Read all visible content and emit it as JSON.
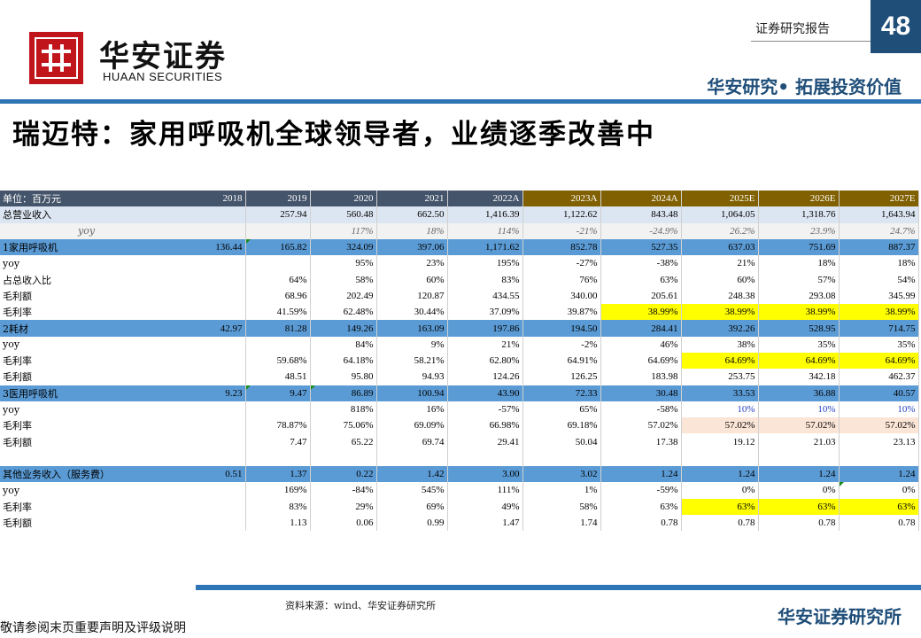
{
  "brand": {
    "name_cn": "华安证券",
    "name_en": "HUAAN SECURITIES"
  },
  "header": {
    "report_type": "证券研究报告",
    "page_number": "48",
    "slogan": "华安研究• 拓展投资价值"
  },
  "title": "瑞迈特：家用呼吸机全球领导者，业绩逐季改善中",
  "table": {
    "unit_label": "单位：百万元",
    "years": [
      "2018",
      "2019",
      "2020",
      "2021",
      "2022A",
      "2023A",
      "2024A",
      "2025E",
      "2026E",
      "2027E"
    ],
    "rows": [
      {
        "label": "总营业收入",
        "values": [
          "",
          "257.94",
          "560.48",
          "662.50",
          "1,416.39",
          "1,122.62",
          "843.48",
          "1,064.05",
          "1,318.76",
          "1,643.94"
        ]
      },
      {
        "label": "yoy",
        "values": [
          "",
          "",
          "117%",
          "18%",
          "114%",
          "-21%",
          "-24.9%",
          "26.2%",
          "23.9%",
          "24.7%"
        ]
      },
      {
        "label": "1家用呼吸机",
        "values": [
          "136.44",
          "165.82",
          "324.09",
          "397.06",
          "1,171.62",
          "852.78",
          "527.35",
          "637.03",
          "751.69",
          "887.37"
        ]
      },
      {
        "label": "yoy",
        "values": [
          "",
          "",
          "95%",
          "23%",
          "195%",
          "-27%",
          "-38%",
          "21%",
          "18%",
          "18%"
        ]
      },
      {
        "label": "占总收入比",
        "values": [
          "",
          "64%",
          "58%",
          "60%",
          "83%",
          "76%",
          "63%",
          "60%",
          "57%",
          "54%"
        ]
      },
      {
        "label": "毛利额",
        "values": [
          "",
          "68.96",
          "202.49",
          "120.87",
          "434.55",
          "340.00",
          "205.61",
          "248.38",
          "293.08",
          "345.99"
        ]
      },
      {
        "label": "毛利率",
        "values": [
          "",
          "41.59%",
          "62.48%",
          "30.44%",
          "37.09%",
          "39.87%",
          "38.99%",
          "38.99%",
          "38.99%",
          "38.99%"
        ]
      },
      {
        "label": "2耗材",
        "values": [
          "42.97",
          "81.28",
          "149.26",
          "163.09",
          "197.86",
          "194.50",
          "284.41",
          "392.26",
          "528.95",
          "714.75"
        ]
      },
      {
        "label": "yoy",
        "values": [
          "",
          "",
          "84%",
          "9%",
          "21%",
          "-2%",
          "46%",
          "38%",
          "35%",
          "35%"
        ]
      },
      {
        "label": "毛利率",
        "values": [
          "",
          "59.68%",
          "64.18%",
          "58.21%",
          "62.80%",
          "64.91%",
          "64.69%",
          "64.69%",
          "64.69%",
          "64.69%"
        ]
      },
      {
        "label": "毛利额",
        "values": [
          "",
          "48.51",
          "95.80",
          "94.93",
          "124.26",
          "126.25",
          "183.98",
          "253.75",
          "342.18",
          "462.37"
        ]
      },
      {
        "label": "3医用呼吸机",
        "values": [
          "9.23",
          "9.47",
          "86.89",
          "100.94",
          "43.90",
          "72.33",
          "30.48",
          "33.53",
          "36.88",
          "40.57"
        ]
      },
      {
        "label": "yoy",
        "values": [
          "",
          "",
          "818%",
          "16%",
          "-57%",
          "65%",
          "-58%",
          "10%",
          "10%",
          "10%"
        ]
      },
      {
        "label": "毛利率",
        "values": [
          "",
          "78.87%",
          "75.06%",
          "69.09%",
          "66.98%",
          "69.18%",
          "57.02%",
          "57.02%",
          "57.02%",
          "57.02%"
        ]
      },
      {
        "label": "毛利额",
        "values": [
          "",
          "7.47",
          "65.22",
          "69.74",
          "29.41",
          "50.04",
          "17.38",
          "19.12",
          "21.03",
          "23.13"
        ]
      },
      {
        "label": "",
        "values": [
          "",
          "",
          "",
          "",
          "",
          "",
          "",
          "",
          "",
          ""
        ]
      },
      {
        "label": "其他业务收入（服务费）",
        "values": [
          "0.51",
          "1.37",
          "0.22",
          "1.42",
          "3.00",
          "3.02",
          "1.24",
          "1.24",
          "1.24",
          "1.24"
        ]
      },
      {
        "label": "yoy",
        "values": [
          "",
          "169%",
          "-84%",
          "545%",
          "111%",
          "1%",
          "-59%",
          "0%",
          "0%",
          "0%"
        ]
      },
      {
        "label": "毛利率",
        "values": [
          "",
          "83%",
          "29%",
          "69%",
          "49%",
          "58%",
          "63%",
          "63%",
          "63%",
          "63%"
        ]
      },
      {
        "label": "毛利额",
        "values": [
          "",
          "1.13",
          "0.06",
          "0.99",
          "1.47",
          "1.74",
          "0.78",
          "0.78",
          "0.78",
          "0.78"
        ]
      }
    ]
  },
  "colors": {
    "brand_red": "#c0151b",
    "brand_blue": "#1f4e79",
    "highlight_yellow": "#ffff00",
    "segment_blue": "#5b9bd5",
    "forecast_header": "#806000"
  },
  "footer": {
    "source": "资料来源：wind、华安证券研究所",
    "disclaimer": "敬请参阅末页重要声明及评级说明",
    "brand": "华安证券研究所"
  }
}
